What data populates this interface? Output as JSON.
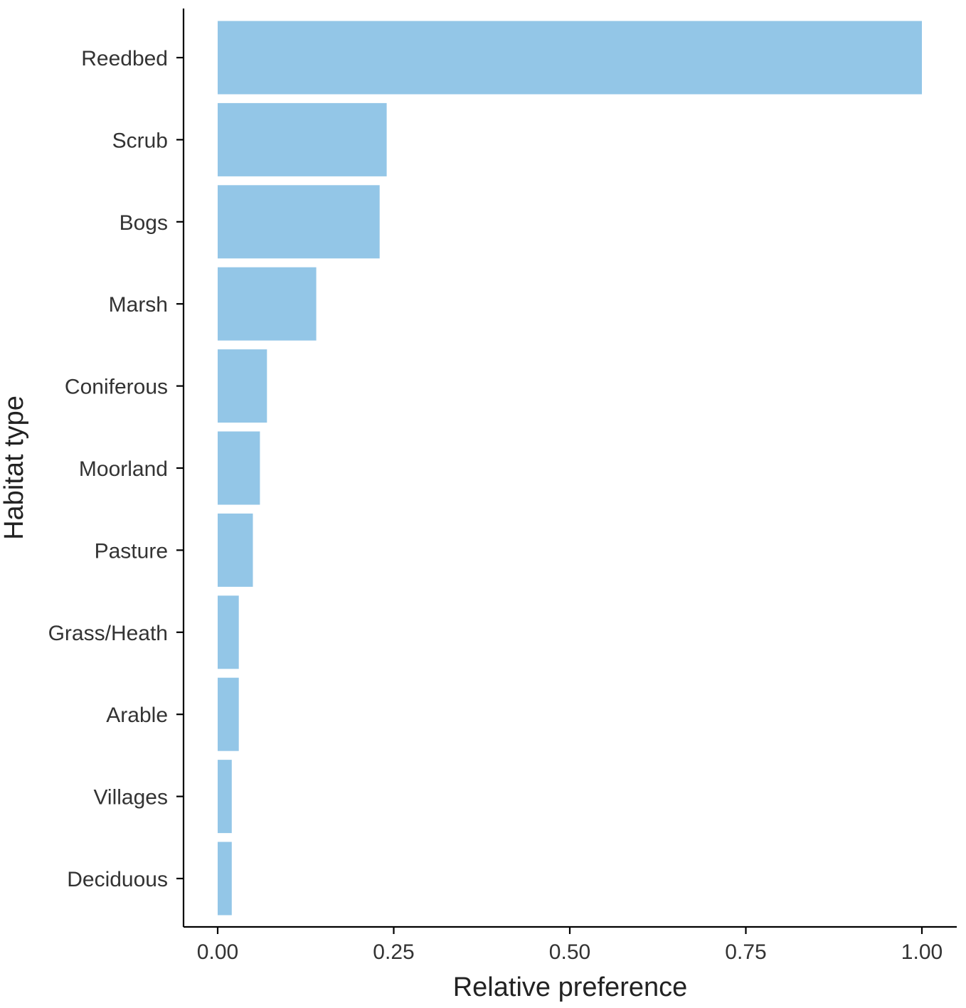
{
  "chart_data": {
    "type": "bar",
    "orientation": "horizontal",
    "categories": [
      "Reedbed",
      "Scrub",
      "Bogs",
      "Marsh",
      "Coniferous",
      "Moorland",
      "Pasture",
      "Grass/Heath",
      "Arable",
      "Villages",
      "Deciduous"
    ],
    "values": [
      1.0,
      0.24,
      0.23,
      0.14,
      0.07,
      0.06,
      0.05,
      0.03,
      0.03,
      0.02,
      0.02
    ],
    "xlabel": "Relative preference",
    "ylabel": "Habitat type",
    "xlim": [
      -0.05,
      1.05
    ],
    "x_ticks": [
      0.0,
      0.25,
      0.5,
      0.75,
      1.0
    ],
    "x_tick_labels": [
      "0.00",
      "0.25",
      "0.50",
      "0.75",
      "1.00"
    ],
    "bar_color": "#93c6e7",
    "grid": false,
    "legend": "none"
  }
}
